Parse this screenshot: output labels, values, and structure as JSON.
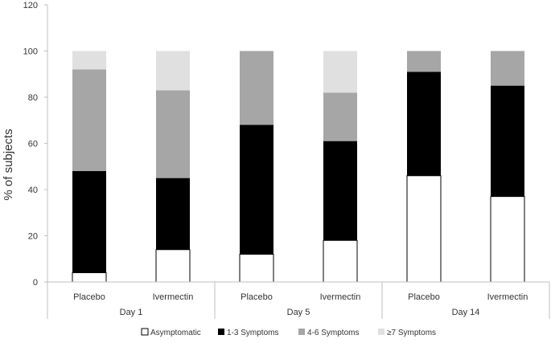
{
  "chart_data": {
    "type": "bar",
    "stacked": true,
    "ylabel": "% of subjects",
    "xlabel": "",
    "ylim": [
      0,
      120
    ],
    "yticks": [
      0,
      20,
      40,
      60,
      80,
      100,
      120
    ],
    "grid": false,
    "legend_position": "bottom",
    "categories": [
      "Placebo",
      "Ivermectin",
      "Placebo",
      "Ivermectin",
      "Placebo",
      "Ivermectin"
    ],
    "groups": [
      {
        "label": "Day 1",
        "categories": [
          "Placebo",
          "Ivermectin"
        ]
      },
      {
        "label": "Day 5",
        "categories": [
          "Placebo",
          "Ivermectin"
        ]
      },
      {
        "label": "Day 14",
        "categories": [
          "Placebo",
          "Ivermectin"
        ]
      }
    ],
    "series": [
      {
        "name": "Asymptomatic",
        "color": "#ffffff",
        "values": [
          4,
          14,
          12,
          18,
          46,
          37
        ]
      },
      {
        "name": "1-3 Symptoms",
        "color": "#000000",
        "values": [
          44,
          31,
          56,
          43,
          45,
          48
        ]
      },
      {
        "name": "4-6 Symptoms",
        "color": "#a6a6a6",
        "values": [
          44,
          38,
          32,
          21,
          9,
          15
        ]
      },
      {
        "name": "≥7 Symptoms",
        "color": "#e0e0e0",
        "values": [
          8,
          17,
          0,
          18,
          0,
          0
        ]
      }
    ]
  }
}
